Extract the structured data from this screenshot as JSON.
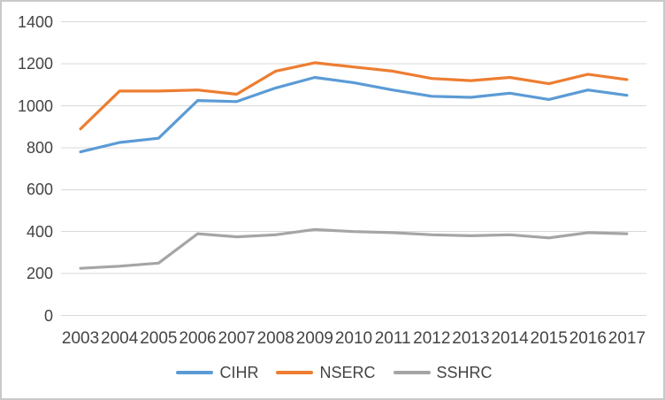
{
  "window": {
    "background": "#FFFFFF",
    "border_color": "#C9C9C9"
  },
  "chart_data": {
    "type": "line",
    "title": "",
    "xlabel": "",
    "ylabel": "",
    "x": [
      2003,
      2004,
      2005,
      2006,
      2007,
      2008,
      2009,
      2010,
      2011,
      2012,
      2013,
      2014,
      2015,
      2016,
      2017
    ],
    "series": [
      {
        "name": "CIHR",
        "color": "#5B9BD5",
        "values": [
          780,
          825,
          845,
          1025,
          1020,
          1085,
          1135,
          1110,
          1075,
          1045,
          1040,
          1060,
          1030,
          1075,
          1050
        ]
      },
      {
        "name": "NSERC",
        "color": "#ED7D31",
        "values": [
          890,
          1070,
          1070,
          1075,
          1055,
          1165,
          1205,
          1185,
          1165,
          1130,
          1120,
          1135,
          1105,
          1150,
          1125
        ]
      },
      {
        "name": "SSHRC",
        "color": "#A5A5A5",
        "values": [
          225,
          235,
          250,
          390,
          375,
          385,
          410,
          400,
          395,
          385,
          380,
          385,
          370,
          395,
          390
        ]
      }
    ],
    "ylim": [
      0,
      1400
    ],
    "yticks": [
      0,
      200,
      400,
      600,
      800,
      1000,
      1200,
      1400
    ],
    "grid": true,
    "gridline_color": "#D9D9D9",
    "tick_label_color": "#444444",
    "legend_position": "bottom"
  }
}
